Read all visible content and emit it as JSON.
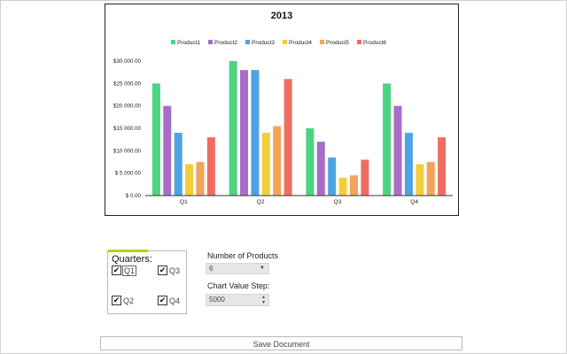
{
  "chart_data": {
    "type": "bar",
    "title": "2013",
    "categories": [
      "Q1",
      "Q2",
      "Q3",
      "Q4"
    ],
    "series": [
      {
        "name": "Product1",
        "color": "#4cd480",
        "values": [
          25000,
          30000,
          15000,
          25000
        ]
      },
      {
        "name": "Product2",
        "color": "#a86cc9",
        "values": [
          20000,
          28000,
          12000,
          20000
        ]
      },
      {
        "name": "Product3",
        "color": "#4ea3e3",
        "values": [
          14000,
          28000,
          8500,
          14000
        ]
      },
      {
        "name": "Product4",
        "color": "#f5cd3a",
        "values": [
          7000,
          14000,
          4000,
          7000
        ]
      },
      {
        "name": "Product5",
        "color": "#f4a35a",
        "values": [
          7500,
          15500,
          4500,
          7500
        ]
      },
      {
        "name": "Product6",
        "color": "#ee6e62",
        "values": [
          13000,
          26000,
          8000,
          13000
        ]
      }
    ],
    "ylim": [
      0,
      30000
    ],
    "y_ticks": [
      "$ 0.00",
      "$ 5 000.00",
      "$10 000.00",
      "$15 000.00",
      "$20 000.00",
      "$25 000.00",
      "$30 000.00"
    ],
    "legend_position": "top",
    "grid": false
  },
  "settings": {
    "quarters_title": "Quarters:",
    "quarters": [
      {
        "label": "Q1",
        "checked": true
      },
      {
        "label": "Q3",
        "checked": true
      },
      {
        "label": "Q2",
        "checked": true
      },
      {
        "label": "Q4",
        "checked": true
      }
    ],
    "products_label": "Number of Products",
    "products_value": "6",
    "step_label": "Chart Value Step:",
    "step_value": "5000"
  },
  "actions": {
    "save_label": "Save Document"
  }
}
